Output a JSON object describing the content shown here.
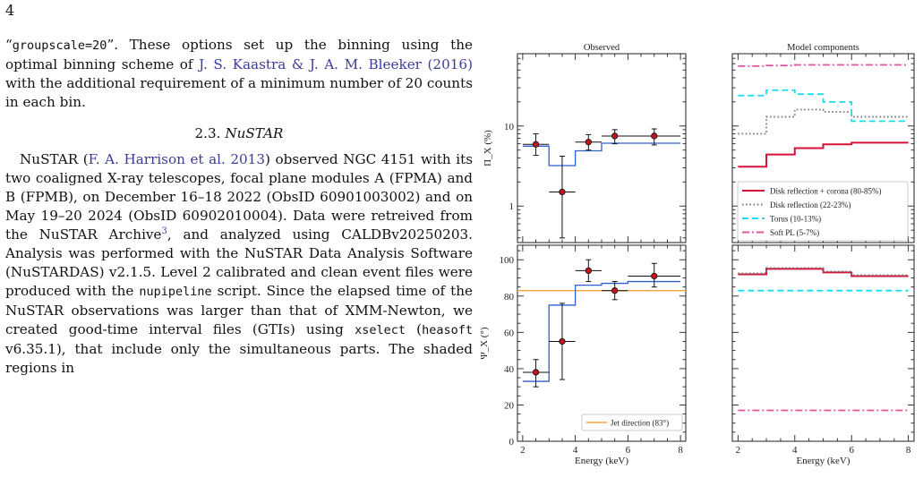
{
  "page_number": "4",
  "text": {
    "p1_a": "“",
    "p1_code": "groupscale=20",
    "p1_b": "”.  These options set up the binning using the optimal binning scheme of ",
    "p1_cite": "J. S. Kaastra & J. A. M. Bleeker (2016)",
    "p1_c": " with the additional requirement of a minimum number of 20 counts in each bin.",
    "section_num": "2.3. ",
    "section_title": "NuSTAR",
    "p2_a": "NuSTAR (",
    "p2_cite": "F. A. Harrison et al. 2013",
    "p2_b": ") observed NGC 4151 with its two coaligned X-ray telescopes, focal plane modules A (FPMA) and B (FPMB), on December 16–18 2022 (ObsID 60901003002) and on May 19–20 2024 (ObsID 60902010004). Data were retreived from the NuSTAR Archive",
    "p2_fn": "3",
    "p2_c": ", and analyzed using CALDBv20250203. Analysis was performed with the NuSTAR Data Analysis Software (NuSTARDAS) v2.1.5. Level 2 calibrated and clean event files were produced with the ",
    "p2_code1": "nupipeline",
    "p2_d": " script. Since the elapsed time of the NuSTAR observations was larger than that of XMM-Newton, we created good-time interval files (GTIs) using ",
    "p2_code2": "xselect",
    "p2_e": " (",
    "p2_code3": "heasoft",
    "p2_f": " v6.35.1), that include only the simultaneous parts.  The shaded regions in"
  },
  "figure": {
    "titles": [
      "Observed",
      "Model components"
    ],
    "ylabel_top": "Π_X (%)",
    "ylabel_bottom": "Ψ_X (°)",
    "xlabel": "Energy (keV)",
    "legend_top": [
      {
        "label": "Disk reflection + corona (80-85%)",
        "color": "#d6113a",
        "style": "solid"
      },
      {
        "label": "Disk reflection (22-23%)",
        "color": "#777777",
        "style": "dotted"
      },
      {
        "label": "Torus (10-13%)",
        "color": "#13e0ee",
        "style": "dashed"
      },
      {
        "label": "Soft PL (5-7%)",
        "color": "#e0559e",
        "style": "dashdot"
      }
    ],
    "legend_bottom": {
      "label": "Jet direction (83°)",
      "color": "#f5a236"
    }
  },
  "chart_data": [
    {
      "type": "scatter",
      "title": "Observed",
      "panel": "top",
      "xlabel": "",
      "ylabel": "Π_X (%)",
      "yscale": "log",
      "ylim": [
        0.35,
        80
      ],
      "xlim": [
        1.8,
        8.2
      ],
      "xticks": [
        2,
        4,
        6,
        8
      ],
      "yticks": [
        1,
        10
      ],
      "yticklabels": [
        "1",
        "10"
      ],
      "points": [
        {
          "x": 2.5,
          "xerr": [
            0.5,
            0.5
          ],
          "y": 5.9,
          "yerr": [
            4.3,
            8.0
          ]
        },
        {
          "x": 3.5,
          "xerr": [
            0.5,
            0.5
          ],
          "y": 1.5,
          "yerr": [
            0.4,
            4.2
          ]
        },
        {
          "x": 4.5,
          "xerr": [
            0.5,
            0.5
          ],
          "y": 6.3,
          "yerr": [
            5.0,
            7.8
          ]
        },
        {
          "x": 5.5,
          "xerr": [
            0.5,
            0.5
          ],
          "y": 7.5,
          "yerr": [
            6.0,
            9.0
          ]
        },
        {
          "x": 7.0,
          "xerr": [
            1.0,
            1.0
          ],
          "y": 7.5,
          "yerr": [
            5.8,
            9.2
          ]
        }
      ],
      "model_step": {
        "edges": [
          2,
          3,
          4,
          5,
          6,
          8
        ],
        "values": [
          5.6,
          3.2,
          4.9,
          6.1,
          6.1
        ],
        "color": "#2f5fd0"
      }
    },
    {
      "type": "line",
      "title": "Model components",
      "panel": "top",
      "yscale": "log",
      "ylim": [
        0.35,
        80
      ],
      "xlim": [
        1.8,
        8.2
      ],
      "xticks": [
        2,
        4,
        6,
        8
      ],
      "edges": [
        2,
        3,
        4,
        5,
        6,
        8
      ],
      "series": [
        {
          "name": "Disk reflection + corona (80-85%)",
          "values": [
            3.1,
            4.4,
            5.3,
            5.9,
            6.2
          ],
          "color": "#d6113a",
          "style": "solid"
        },
        {
          "name": "Disk reflection (22-23%)",
          "values": [
            8.0,
            13.0,
            16.0,
            15.0,
            13.0
          ],
          "color": "#777777",
          "style": "dotted"
        },
        {
          "name": "Torus (10-13%)",
          "values": [
            24,
            28,
            25,
            20,
            11.5
          ],
          "color": "#13e0ee",
          "style": "dashed"
        },
        {
          "name": "Soft PL (5-7%)",
          "values": [
            56,
            57,
            58,
            58,
            58
          ],
          "color": "#e0559e",
          "style": "dashdot"
        }
      ]
    },
    {
      "type": "scatter",
      "panel": "bottom",
      "xlabel": "Energy (keV)",
      "ylabel": "Ψ_X (°)",
      "ylim": [
        0,
        108
      ],
      "xlim": [
        1.8,
        8.2
      ],
      "xticks": [
        2,
        4,
        6,
        8
      ],
      "yticks": [
        0,
        20,
        40,
        60,
        80,
        100
      ],
      "points": [
        {
          "x": 2.5,
          "xerr": [
            0.5,
            0.5
          ],
          "y": 38,
          "yerr": [
            30,
            45
          ]
        },
        {
          "x": 3.5,
          "xerr": [
            0.5,
            0.5
          ],
          "y": 55,
          "yerr": [
            34,
            76
          ]
        },
        {
          "x": 4.5,
          "xerr": [
            0.5,
            0.5
          ],
          "y": 94,
          "yerr": [
            88,
            100
          ]
        },
        {
          "x": 5.5,
          "xerr": [
            0.5,
            0.5
          ],
          "y": 83,
          "yerr": [
            78,
            88
          ]
        },
        {
          "x": 7.0,
          "xerr": [
            1.0,
            1.0
          ],
          "y": 91,
          "yerr": [
            85,
            98
          ]
        }
      ],
      "model_step": {
        "edges": [
          2,
          3,
          4,
          5,
          6,
          8
        ],
        "values": [
          33,
          75,
          86,
          87,
          88
        ],
        "color": "#2f5fd0"
      },
      "hline": {
        "y": 83,
        "color": "#f5a236",
        "label": "Jet direction (83°)"
      }
    },
    {
      "type": "line",
      "panel": "bottom",
      "xlabel": "Energy (keV)",
      "ylim": [
        0,
        108
      ],
      "xlim": [
        1.8,
        8.2
      ],
      "xticks": [
        2,
        4,
        6,
        8
      ],
      "edges": [
        2,
        3,
        4,
        5,
        6,
        8
      ],
      "series": [
        {
          "values": [
            92,
            95,
            95,
            93,
            91
          ],
          "color": "#d6113a",
          "style": "solid"
        },
        {
          "values": [
            92.5,
            95.5,
            95.5,
            93.5,
            91.5
          ],
          "color": "#777777",
          "style": "dotted"
        },
        {
          "values": [
            83,
            83,
            83,
            83,
            83
          ],
          "color": "#13e0ee",
          "style": "dashed"
        },
        {
          "values": [
            17,
            17,
            17,
            17,
            17
          ],
          "color": "#e0559e",
          "style": "dashdot"
        }
      ]
    }
  ]
}
